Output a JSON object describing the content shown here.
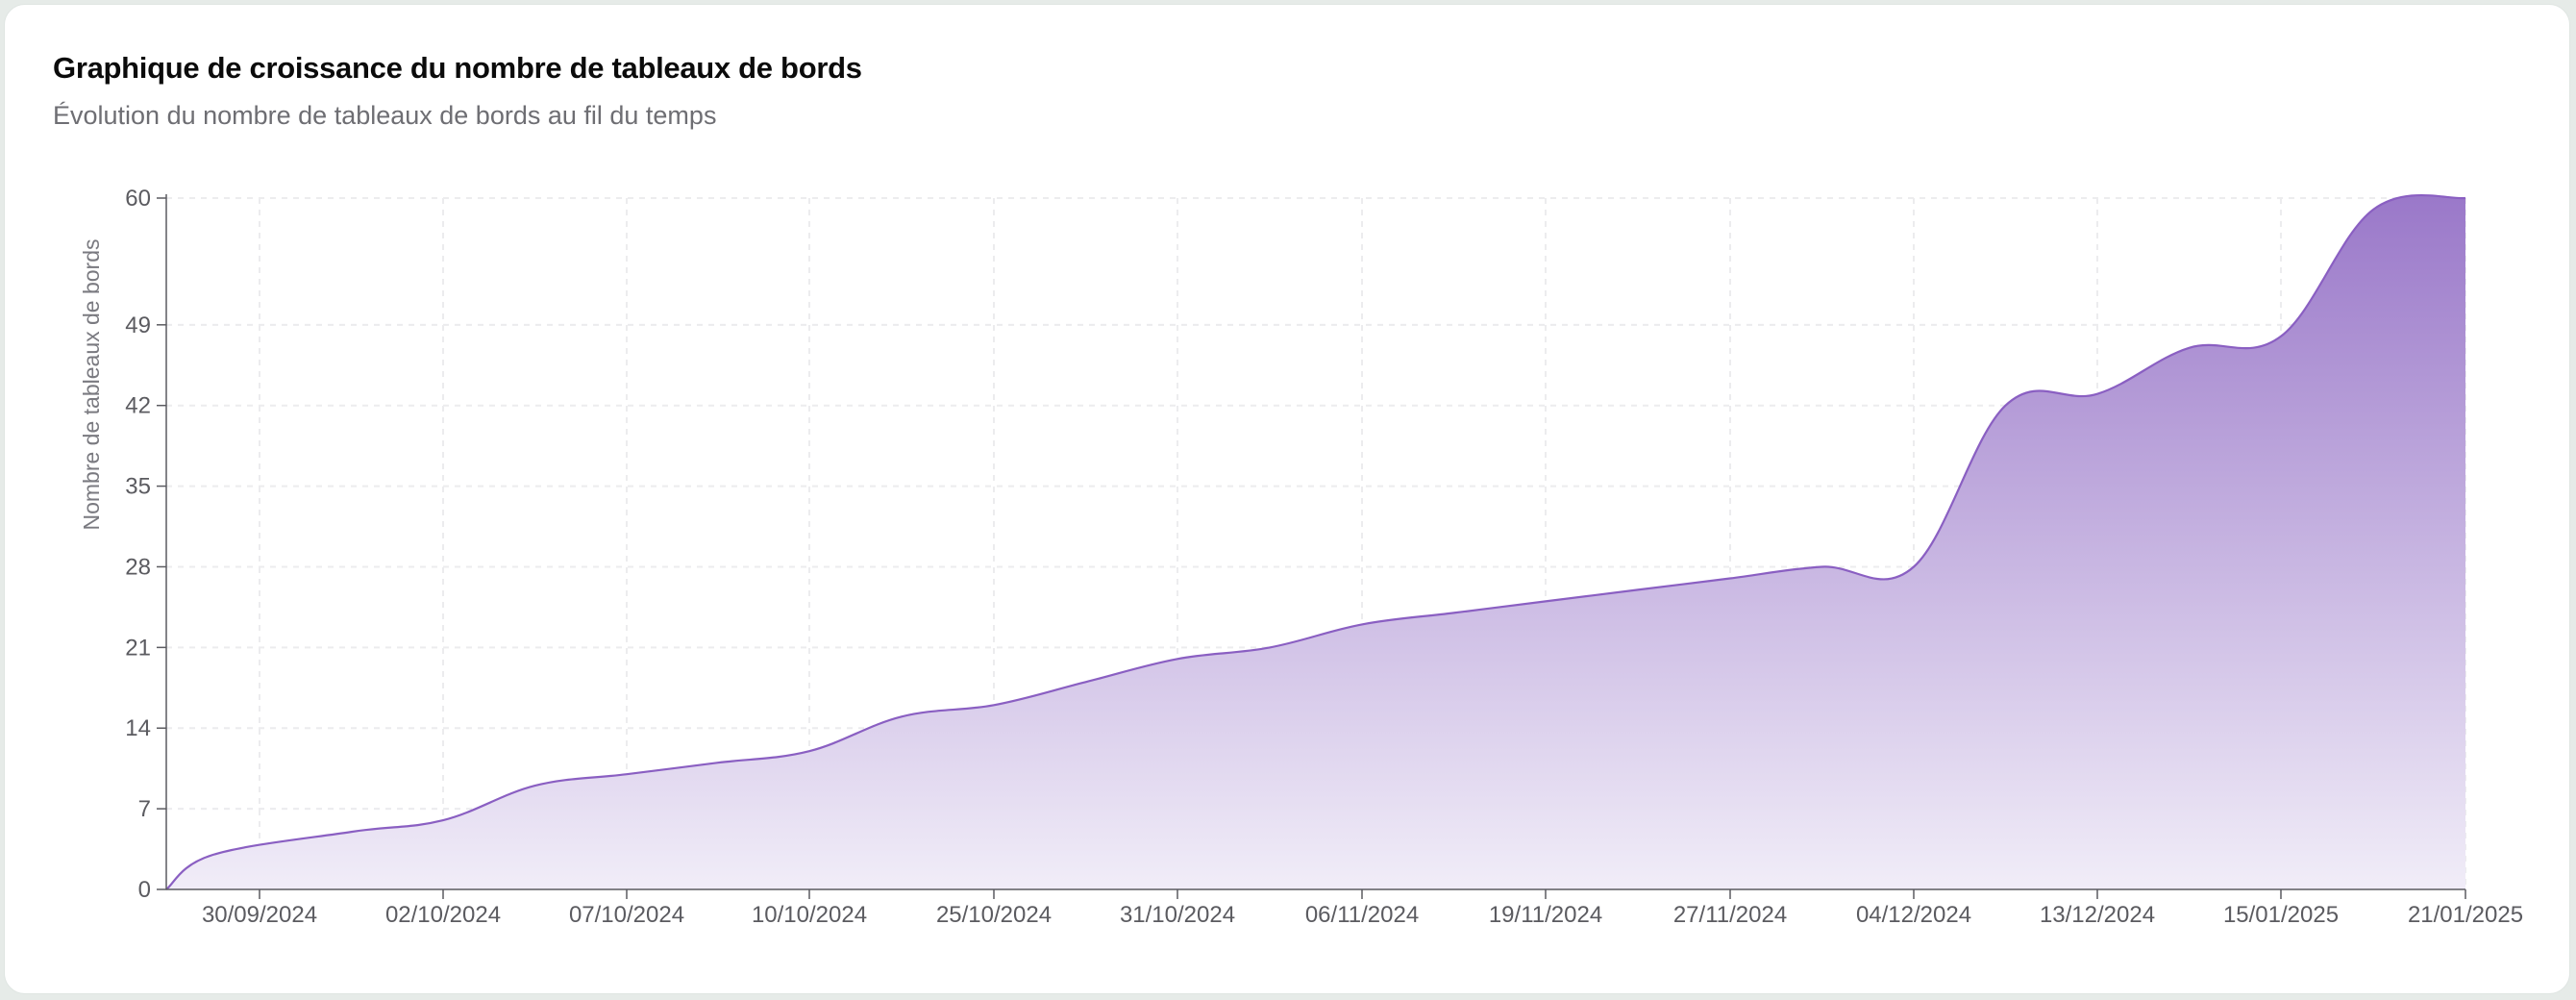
{
  "header": {
    "title": "Graphique de croissance du nombre de tableaux de bords",
    "subtitle": "Évolution du nombre de tableaux de bords au fil du temps"
  },
  "colors": {
    "line": "#8a5fc2",
    "fill_top": "#9a78c9",
    "fill_bottom": "#f1edf8",
    "grid": "#ececee",
    "axis": "#5b5b60"
  },
  "chart_data": {
    "type": "area",
    "title": "Graphique de croissance du nombre de tableaux de bords",
    "subtitle": "Évolution du nombre de tableaux de bords au fil du temps",
    "xlabel": "",
    "ylabel": "Nombre de tableaux de bords",
    "ylim": [
      0,
      60
    ],
    "yticks": [
      0,
      7,
      14,
      21,
      28,
      35,
      42,
      49,
      60
    ],
    "grid": true,
    "legend": "none",
    "x_tick_labels": [
      "30/09/2024",
      "02/10/2024",
      "07/10/2024",
      "10/10/2024",
      "25/10/2024",
      "31/10/2024",
      "06/11/2024",
      "19/11/2024",
      "27/11/2024",
      "04/12/2024",
      "13/12/2024",
      "15/01/2025",
      "21/01/2025"
    ],
    "series": [
      {
        "points": [
          [
            0.0,
            0
          ],
          [
            0.5,
            3
          ],
          [
            1.0,
            5
          ],
          [
            1.5,
            6
          ],
          [
            2.0,
            9
          ],
          [
            2.5,
            10
          ],
          [
            3.0,
            11
          ],
          [
            3.5,
            12
          ],
          [
            4.0,
            15
          ],
          [
            4.5,
            16
          ],
          [
            5.0,
            18
          ],
          [
            5.5,
            20
          ],
          [
            6.0,
            21
          ],
          [
            6.5,
            23
          ],
          [
            7.0,
            24
          ],
          [
            7.5,
            25
          ],
          [
            8.0,
            26
          ],
          [
            8.5,
            27
          ],
          [
            9.0,
            28
          ],
          [
            9.5,
            28
          ],
          [
            10.0,
            42
          ],
          [
            10.5,
            43
          ],
          [
            11.0,
            47
          ],
          [
            11.5,
            48
          ],
          [
            12.0,
            59
          ],
          [
            12.5,
            60
          ]
        ]
      }
    ]
  }
}
